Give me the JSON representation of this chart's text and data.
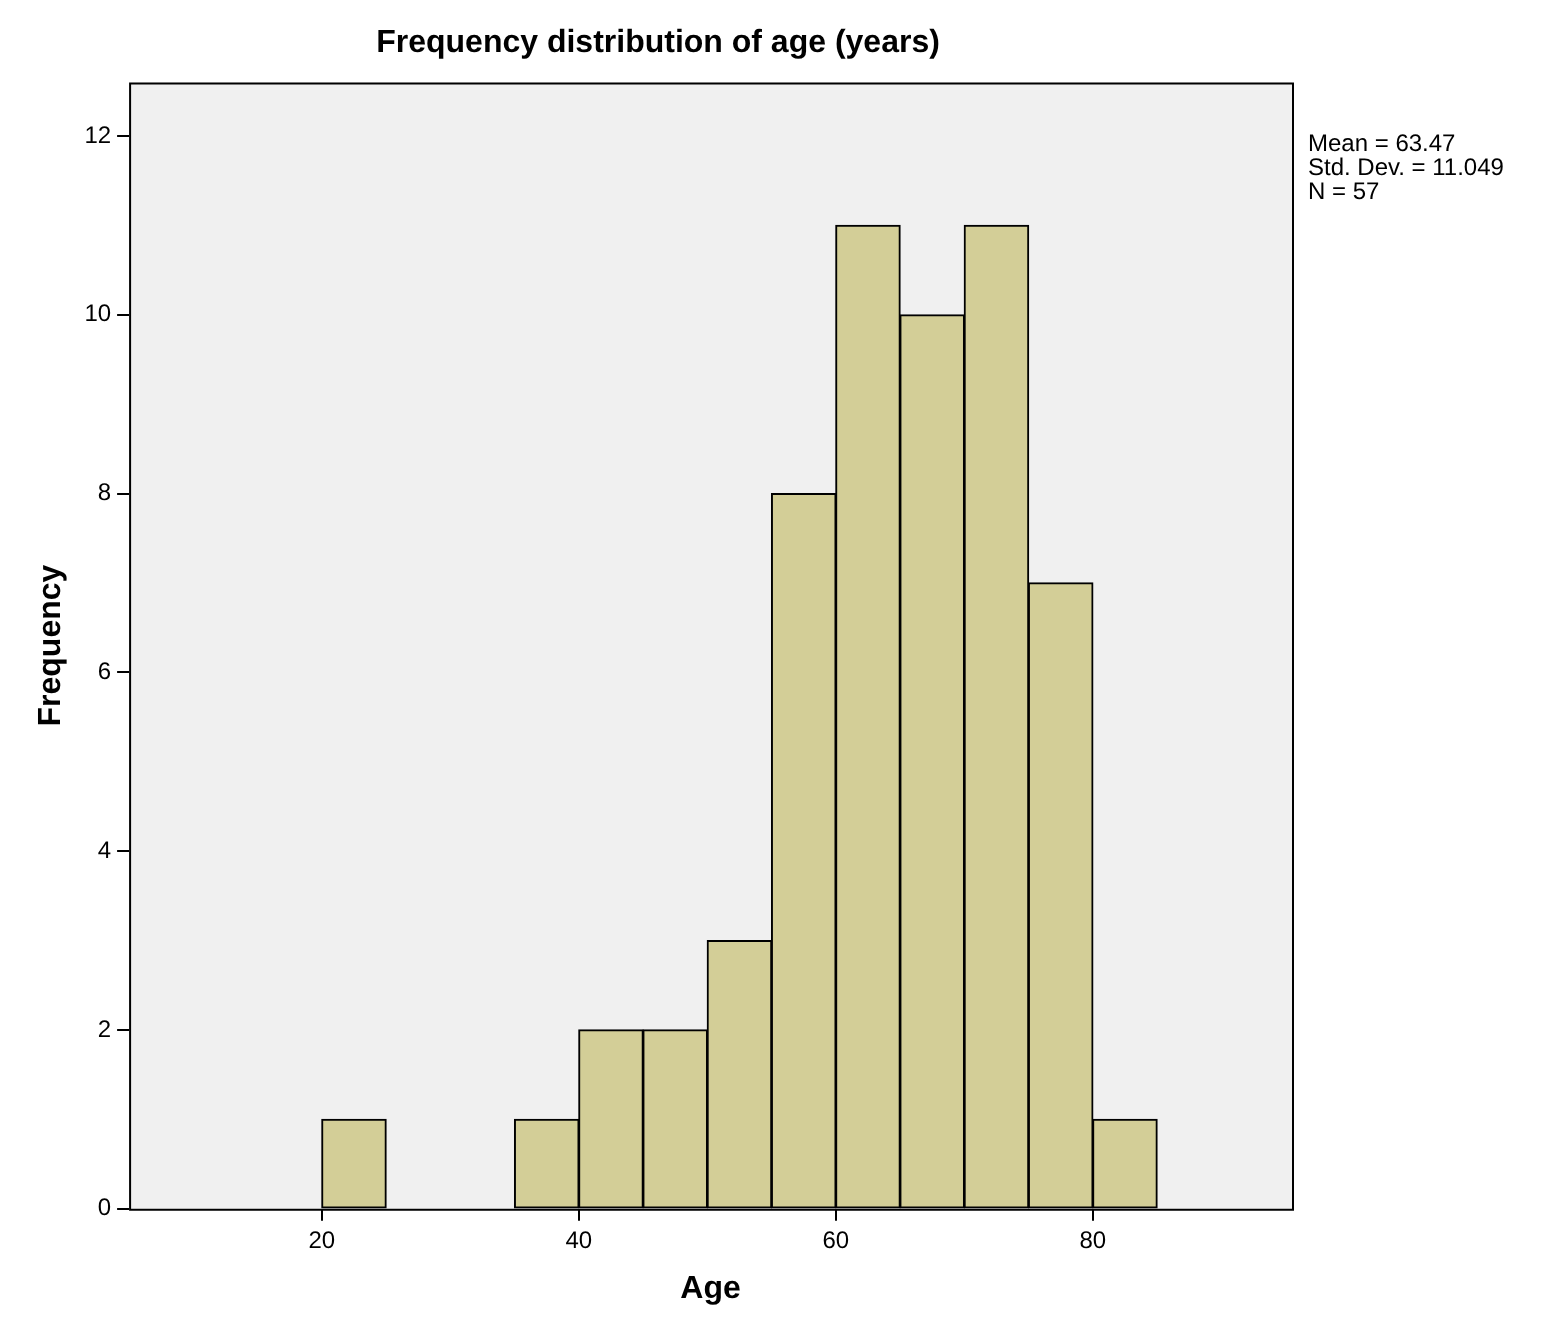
{
  "chart_data": {
    "type": "histogram",
    "title": "Frequency distribution of age (years)",
    "xlabel": "Age",
    "ylabel": "Frequency",
    "bins": [
      20,
      25,
      30,
      35,
      40,
      45,
      50,
      55,
      60,
      65,
      70,
      75,
      80,
      85
    ],
    "values": [
      1,
      0,
      0,
      1,
      2,
      2,
      3,
      8,
      11,
      10,
      11,
      7,
      1
    ],
    "color": "#d3ce97",
    "xlim": [
      5,
      95.5
    ],
    "xticks": [
      20,
      40,
      60,
      80
    ],
    "ylim": [
      0,
      12.6
    ],
    "yticks": [
      0,
      2,
      4,
      6,
      8,
      10,
      12
    ],
    "grid": false,
    "legend": false,
    "annotations": [
      "Mean = 63.47",
      "Std. Dev. = 11.049",
      "N = 57"
    ]
  }
}
